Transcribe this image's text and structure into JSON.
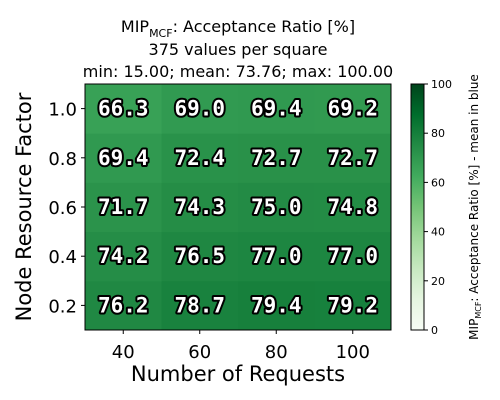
{
  "chart_data": {
    "type": "heatmap",
    "title": {
      "prefix": "MIP",
      "subscript": "MCF",
      "suffix": ": Acceptance Ratio [%]"
    },
    "subtitle_line1": "375 values per square",
    "subtitle_line2": "min: 15.00; mean: 73.76; max: 100.00",
    "xlabel": "Number of Requests",
    "ylabel": "Node Resource Factor",
    "x_categories": [
      "40",
      "60",
      "80",
      "100"
    ],
    "y_categories": [
      "0.2",
      "0.4",
      "0.6",
      "0.8",
      "1.0"
    ],
    "values": [
      [
        76.2,
        78.7,
        79.4,
        79.2
      ],
      [
        74.2,
        76.5,
        77.0,
        77.0
      ],
      [
        71.7,
        74.3,
        75.0,
        74.8
      ],
      [
        69.4,
        72.4,
        72.7,
        72.7
      ],
      [
        66.3,
        69.0,
        69.4,
        69.2
      ]
    ],
    "value_labels": [
      [
        "76.2",
        "78.7",
        "79.4",
        "79.2"
      ],
      [
        "74.2",
        "76.5",
        "77.0",
        "77.0"
      ],
      [
        "71.7",
        "74.3",
        "75.0",
        "74.8"
      ],
      [
        "69.4",
        "72.4",
        "72.7",
        "72.7"
      ],
      [
        "66.3",
        "69.0",
        "69.4",
        "69.2"
      ]
    ],
    "colorbar": {
      "range": [
        0,
        100
      ],
      "ticks": [
        "0",
        "20",
        "40",
        "60",
        "80",
        "100"
      ],
      "label_prefix": "MIP",
      "label_subscript": "MCF",
      "label_suffix": ": Acceptance Ratio [%] - mean in blue"
    },
    "colormap": "Greens",
    "grid": false
  }
}
